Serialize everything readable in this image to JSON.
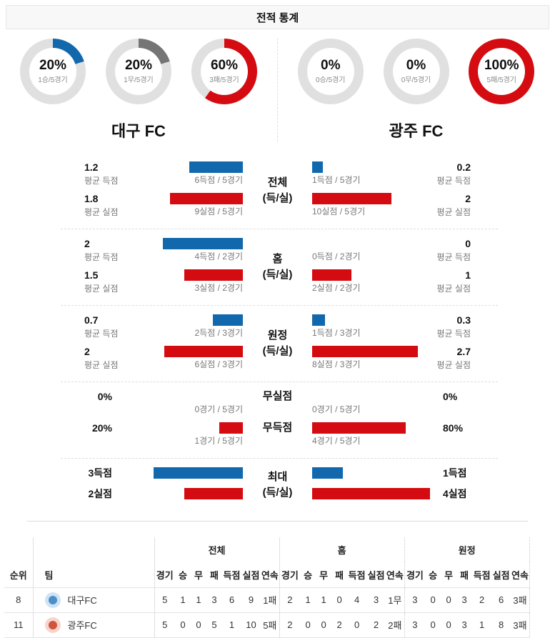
{
  "title": "전적 통계",
  "colors": {
    "blue": "#1268ad",
    "red": "#d40b10",
    "draw_gray": "#757575",
    "ring": "#e0e0e0"
  },
  "teams": {
    "left": {
      "name": "대구 FC",
      "donuts": [
        {
          "label": "20%",
          "sub": "1승/5경기",
          "pct": 20,
          "color": "#1268ad"
        },
        {
          "label": "20%",
          "sub": "1무/5경기",
          "pct": 20,
          "color": "#757575"
        },
        {
          "label": "60%",
          "sub": "3패/5경기",
          "pct": 60,
          "color": "#d40b10"
        }
      ]
    },
    "right": {
      "name": "광주 FC",
      "donuts": [
        {
          "label": "0%",
          "sub": "0승/5경기",
          "pct": 0,
          "color": "#1268ad"
        },
        {
          "label": "0%",
          "sub": "0무/5경기",
          "pct": 0,
          "color": "#757575"
        },
        {
          "label": "100%",
          "sub": "5패/5경기",
          "pct": 100,
          "color": "#d40b10"
        }
      ]
    }
  },
  "stats": {
    "rows": [
      {
        "center_top": "전체",
        "center_bottom": "(득/실)",
        "left": {
          "top": {
            "value": "1.2",
            "caption": "평균 득점",
            "bar": 75,
            "bar_label": "6득점 / 5경기"
          },
          "bottom": {
            "value": "1.8",
            "caption": "평균 실점",
            "bar": 102,
            "bar_label": "9실점 / 5경기"
          }
        },
        "right": {
          "top": {
            "value": "0.2",
            "caption": "평균 득점",
            "bar": 15,
            "bar_label": "1득점 / 5경기"
          },
          "bottom": {
            "value": "2",
            "caption": "평균 실점",
            "bar": 111,
            "bar_label": "10실점 / 5경기"
          }
        }
      },
      {
        "center_top": "홈",
        "center_bottom": "(득/실)",
        "left": {
          "top": {
            "value": "2",
            "caption": "평균 득점",
            "bar": 112,
            "bar_label": "4득점 / 2경기"
          },
          "bottom": {
            "value": "1.5",
            "caption": "평균 실점",
            "bar": 82,
            "bar_label": "3실점 / 2경기"
          }
        },
        "right": {
          "top": {
            "value": "0",
            "caption": "평균 득점",
            "bar": 0,
            "bar_label": "0득점 / 2경기"
          },
          "bottom": {
            "value": "1",
            "caption": "평균 실점",
            "bar": 55,
            "bar_label": "2실점 / 2경기"
          }
        }
      },
      {
        "center_top": "원정",
        "center_bottom": "(득/실)",
        "left": {
          "top": {
            "value": "0.7",
            "caption": "평균 득점",
            "bar": 42,
            "bar_label": "2득점 / 3경기"
          },
          "bottom": {
            "value": "2",
            "caption": "평균 실점",
            "bar": 110,
            "bar_label": "6실점 / 3경기"
          }
        },
        "right": {
          "top": {
            "value": "0.3",
            "caption": "평균 득점",
            "bar": 18,
            "bar_label": "1득점 / 3경기"
          },
          "bottom": {
            "value": "2.7",
            "caption": "평균 실점",
            "bar": 148,
            "bar_label": "8실점 / 3경기"
          }
        }
      },
      {
        "center_top": "무실점",
        "center_bottom": "무득점",
        "left": {
          "top": {
            "value": "0%",
            "bar": 0,
            "bar_label": "0경기 / 5경기"
          },
          "bottom": {
            "value": "20%",
            "bar": 33,
            "bar_label": "1경기 / 5경기"
          }
        },
        "right": {
          "top": {
            "value": "0%",
            "bar": 0,
            "bar_label": "0경기 / 5경기"
          },
          "bottom": {
            "value": "80%",
            "bar": 131,
            "bar_label": "4경기 / 5경기"
          }
        }
      },
      {
        "center_top": "최대",
        "center_bottom": "(득/실)",
        "left": {
          "top": {
            "value": "3득점",
            "bar": 125
          },
          "bottom": {
            "value": "2실점",
            "bar": 82
          }
        },
        "right": {
          "top": {
            "value": "1득점",
            "bar": 43
          },
          "bottom": {
            "value": "4실점",
            "bar": 165
          }
        }
      }
    ]
  },
  "table": {
    "group_headers": [
      "전체",
      "홈",
      "원정"
    ],
    "col_headers": {
      "rank": "순위",
      "team": "팀",
      "stats": [
        "경기",
        "승",
        "무",
        "패",
        "득점",
        "실점",
        "연속"
      ]
    },
    "rows": [
      {
        "rank": "8",
        "team": "대구FC",
        "overall": [
          "5",
          "1",
          "1",
          "3",
          "6",
          "9",
          "1패"
        ],
        "home": [
          "2",
          "1",
          "1",
          "0",
          "4",
          "3",
          "1무"
        ],
        "away": [
          "3",
          "0",
          "0",
          "3",
          "2",
          "6",
          "3패"
        ]
      },
      {
        "rank": "11",
        "team": "광주FC",
        "overall": [
          "5",
          "0",
          "0",
          "5",
          "1",
          "10",
          "5패"
        ],
        "home": [
          "2",
          "0",
          "0",
          "2",
          "0",
          "2",
          "2패"
        ],
        "away": [
          "3",
          "0",
          "0",
          "3",
          "1",
          "8",
          "3패"
        ]
      }
    ]
  },
  "chart_data": [
    {
      "type": "pie",
      "title": "대구 FC 승/무/패 비율",
      "slices": [
        {
          "label": "승",
          "pct": 20,
          "detail": "1승/5경기"
        },
        {
          "label": "무",
          "pct": 20,
          "detail": "1무/5경기"
        },
        {
          "label": "패",
          "pct": 60,
          "detail": "3패/5경기"
        }
      ]
    },
    {
      "type": "pie",
      "title": "광주 FC 승/무/패 비율",
      "slices": [
        {
          "label": "승",
          "pct": 0,
          "detail": "0승/5경기"
        },
        {
          "label": "무",
          "pct": 0,
          "detail": "0무/5경기"
        },
        {
          "label": "패",
          "pct": 100,
          "detail": "5패/5경기"
        }
      ]
    },
    {
      "type": "bar",
      "title": "전체 (득/실)",
      "categories": [
        "대구 평균 득점",
        "대구 평균 실점",
        "광주 평균 득점",
        "광주 평균 실점"
      ],
      "values": [
        1.2,
        1.8,
        0.2,
        2
      ],
      "annotations": [
        "6득점 / 5경기",
        "9실점 / 5경기",
        "1득점 / 5경기",
        "10실점 / 5경기"
      ]
    },
    {
      "type": "bar",
      "title": "홈 (득/실)",
      "categories": [
        "대구 평균 득점",
        "대구 평균 실점",
        "광주 평균 득점",
        "광주 평균 실점"
      ],
      "values": [
        2,
        1.5,
        0,
        1
      ],
      "annotations": [
        "4득점 / 2경기",
        "3실점 / 2경기",
        "0득점 / 2경기",
        "2실점 / 2경기"
      ]
    },
    {
      "type": "bar",
      "title": "원정 (득/실)",
      "categories": [
        "대구 평균 득점",
        "대구 평균 실점",
        "광주 평균 득점",
        "광주 평균 실점"
      ],
      "values": [
        0.7,
        2,
        0.3,
        2.7
      ],
      "annotations": [
        "2득점 / 3경기",
        "6실점 / 3경기",
        "1득점 / 3경기",
        "8실점 / 3경기"
      ]
    },
    {
      "type": "bar",
      "title": "무실점 / 무득점 비율(%)",
      "categories": [
        "대구 무실점",
        "대구 무득점",
        "광주 무실점",
        "광주 무득점"
      ],
      "values": [
        0,
        20,
        0,
        80
      ],
      "annotations": [
        "0경기 / 5경기",
        "1경기 / 5경기",
        "0경기 / 5경기",
        "4경기 / 5경기"
      ]
    },
    {
      "type": "bar",
      "title": "최대 (득/실)",
      "categories": [
        "대구 최대 득점",
        "대구 최대 실점",
        "광주 최대 득점",
        "광주 최대 실점"
      ],
      "values": [
        3,
        2,
        1,
        4
      ],
      "annotations": [
        "3득점",
        "2실점",
        "1득점",
        "4실점"
      ]
    }
  ]
}
